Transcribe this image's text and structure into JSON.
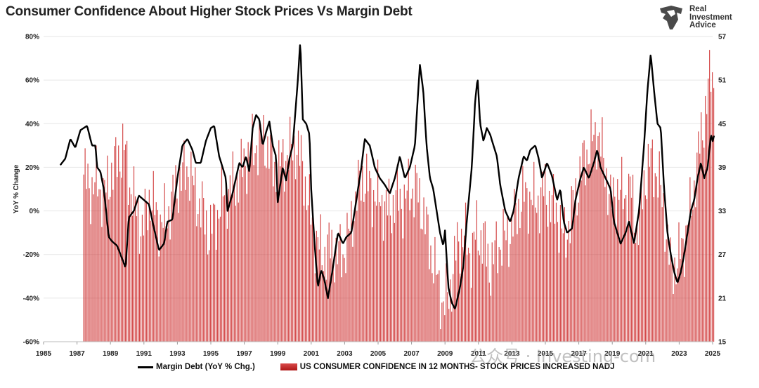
{
  "title": "Consumer Confidence About Higher Stock Prices Vs Margin Debt",
  "logo": {
    "line1": "Real",
    "line2": "Investment",
    "line3": "Advice"
  },
  "watermark": "公众号 · Investing-com",
  "chart_data": {
    "type": "bar+line",
    "title": "Consumer Confidence About Higher Stock Prices Vs Margin Debt",
    "xlabel": "",
    "ylabel": "YoY % Change",
    "x_ticks": [
      "1985",
      "1987",
      "1989",
      "1991",
      "1993",
      "1995",
      "1997",
      "1999",
      "2001",
      "2003",
      "2005",
      "2007",
      "2009",
      "2011",
      "2013",
      "2015",
      "2017",
      "2019",
      "2021",
      "2023",
      "2025"
    ],
    "x_range": [
      1985,
      2025
    ],
    "left_axis": {
      "range": [
        -60,
        80
      ],
      "ticks": [
        "-60%",
        "-40%",
        "-20%",
        "0%",
        "20%",
        "40%",
        "60%",
        "80%"
      ]
    },
    "right_axis": {
      "range": [
        15,
        57
      ],
      "ticks": [
        "15",
        "21",
        "27",
        "33",
        "39",
        "45",
        "51",
        "57"
      ]
    },
    "grid": true,
    "legend_position": "bottom",
    "series": [
      {
        "name": "Margin Debt (YoY % Chg.)",
        "kind": "line",
        "axis": "left",
        "color": "#000000",
        "points": [
          [
            1986.0,
            21
          ],
          [
            1986.3,
            24
          ],
          [
            1986.6,
            33
          ],
          [
            1986.9,
            29
          ],
          [
            1987.2,
            37
          ],
          [
            1987.6,
            39
          ],
          [
            1987.9,
            30
          ],
          [
            1988.1,
            30
          ],
          [
            1988.2,
            20
          ],
          [
            1988.4,
            18
          ],
          [
            1988.6,
            10
          ],
          [
            1988.9,
            -12
          ],
          [
            1989.1,
            -14
          ],
          [
            1989.4,
            -16
          ],
          [
            1989.7,
            -22
          ],
          [
            1989.9,
            -26
          ],
          [
            1990.1,
            -3
          ],
          [
            1990.4,
            0
          ],
          [
            1990.7,
            7
          ],
          [
            1991.0,
            5
          ],
          [
            1991.3,
            3
          ],
          [
            1991.6,
            -8
          ],
          [
            1991.9,
            -18
          ],
          [
            1992.2,
            -15
          ],
          [
            1992.4,
            -5
          ],
          [
            1992.7,
            -4
          ],
          [
            1993.0,
            15
          ],
          [
            1993.3,
            30
          ],
          [
            1993.6,
            33
          ],
          [
            1993.9,
            28
          ],
          [
            1994.1,
            22
          ],
          [
            1994.4,
            22
          ],
          [
            1994.7,
            32
          ],
          [
            1995.0,
            38
          ],
          [
            1995.2,
            39
          ],
          [
            1995.5,
            25
          ],
          [
            1995.7,
            20
          ],
          [
            1995.9,
            15
          ],
          [
            1996.0,
            0
          ],
          [
            1996.3,
            8
          ],
          [
            1996.5,
            15
          ],
          [
            1996.7,
            22
          ],
          [
            1996.9,
            20
          ],
          [
            1997.1,
            25
          ],
          [
            1997.3,
            18
          ],
          [
            1997.5,
            38
          ],
          [
            1997.7,
            44
          ],
          [
            1997.9,
            42
          ],
          [
            1998.1,
            30
          ],
          [
            1998.3,
            36
          ],
          [
            1998.5,
            41
          ],
          [
            1998.7,
            30
          ],
          [
            1998.9,
            25
          ],
          [
            1999.0,
            4
          ],
          [
            1999.3,
            20
          ],
          [
            1999.5,
            14
          ],
          [
            1999.7,
            24
          ],
          [
            1999.9,
            30
          ],
          [
            2000.0,
            40
          ],
          [
            2000.2,
            60
          ],
          [
            2000.35,
            78
          ],
          [
            2000.5,
            42
          ],
          [
            2000.7,
            40
          ],
          [
            2000.9,
            35
          ],
          [
            2001.0,
            10
          ],
          [
            2001.2,
            -15
          ],
          [
            2001.4,
            -35
          ],
          [
            2001.6,
            -27
          ],
          [
            2001.8,
            -32
          ],
          [
            2002.0,
            -40
          ],
          [
            2002.3,
            -26
          ],
          [
            2002.6,
            -10
          ],
          [
            2002.9,
            -15
          ],
          [
            2003.1,
            -12
          ],
          [
            2003.4,
            -10
          ],
          [
            2003.7,
            5
          ],
          [
            2004.0,
            20
          ],
          [
            2004.2,
            33
          ],
          [
            2004.5,
            30
          ],
          [
            2004.8,
            20
          ],
          [
            2005.1,
            15
          ],
          [
            2005.4,
            12
          ],
          [
            2005.7,
            8
          ],
          [
            2006.0,
            15
          ],
          [
            2006.3,
            25
          ],
          [
            2006.6,
            15
          ],
          [
            2006.9,
            20
          ],
          [
            2007.2,
            30
          ],
          [
            2007.4,
            55
          ],
          [
            2007.5,
            67
          ],
          [
            2007.7,
            55
          ],
          [
            2007.9,
            30
          ],
          [
            2008.1,
            15
          ],
          [
            2008.3,
            10
          ],
          [
            2008.5,
            0
          ],
          [
            2008.7,
            -10
          ],
          [
            2008.9,
            -16
          ],
          [
            2009.0,
            -9
          ],
          [
            2009.2,
            -35
          ],
          [
            2009.4,
            -42
          ],
          [
            2009.6,
            -45
          ],
          [
            2009.9,
            -35
          ],
          [
            2010.1,
            -25
          ],
          [
            2010.3,
            -5
          ],
          [
            2010.6,
            20
          ],
          [
            2010.8,
            50
          ],
          [
            2010.95,
            61
          ],
          [
            2011.1,
            40
          ],
          [
            2011.3,
            32
          ],
          [
            2011.5,
            38
          ],
          [
            2011.7,
            35
          ],
          [
            2011.9,
            30
          ],
          [
            2012.1,
            25
          ],
          [
            2012.3,
            12
          ],
          [
            2012.6,
            0
          ],
          [
            2012.9,
            -5
          ],
          [
            2013.1,
            0
          ],
          [
            2013.4,
            15
          ],
          [
            2013.7,
            25
          ],
          [
            2013.9,
            23
          ],
          [
            2014.1,
            28
          ],
          [
            2014.4,
            30
          ],
          [
            2014.6,
            24
          ],
          [
            2014.8,
            15
          ],
          [
            2015.1,
            22
          ],
          [
            2015.4,
            16
          ],
          [
            2015.7,
            5
          ],
          [
            2015.9,
            10
          ],
          [
            2016.1,
            -5
          ],
          [
            2016.3,
            -10
          ],
          [
            2016.6,
            -8
          ],
          [
            2016.8,
            5
          ],
          [
            2017.1,
            15
          ],
          [
            2017.3,
            20
          ],
          [
            2017.6,
            15
          ],
          [
            2017.9,
            22
          ],
          [
            2018.1,
            28
          ],
          [
            2018.3,
            20
          ],
          [
            2018.6,
            15
          ],
          [
            2018.9,
            10
          ],
          [
            2019.1,
            -5
          ],
          [
            2019.3,
            -10
          ],
          [
            2019.5,
            -15
          ],
          [
            2019.8,
            -10
          ],
          [
            2020.0,
            -5
          ],
          [
            2020.3,
            -15
          ],
          [
            2020.6,
            0
          ],
          [
            2020.9,
            30
          ],
          [
            2021.1,
            55
          ],
          [
            2021.3,
            72
          ],
          [
            2021.5,
            55
          ],
          [
            2021.7,
            40
          ],
          [
            2021.9,
            38
          ],
          [
            2022.1,
            10
          ],
          [
            2022.3,
            -10
          ],
          [
            2022.5,
            -20
          ],
          [
            2022.7,
            -28
          ],
          [
            2022.9,
            -33
          ],
          [
            2023.1,
            -28
          ],
          [
            2023.3,
            -20
          ],
          [
            2023.5,
            -10
          ],
          [
            2023.7,
            0
          ],
          [
            2023.9,
            5
          ],
          [
            2024.1,
            15
          ],
          [
            2024.3,
            22
          ],
          [
            2024.5,
            15
          ],
          [
            2024.7,
            20
          ],
          [
            2024.9,
            35
          ],
          [
            2025.0,
            32
          ],
          [
            2025.1,
            35
          ]
        ]
      },
      {
        "name": "US CONSUMER CONFIDENCE IN 12 MONTHS- STOCK PRICES INCREASED NADJ",
        "kind": "bar",
        "axis": "right",
        "color": "#cc2a2a",
        "points": [
          [
            1987.4,
            38
          ],
          [
            1987.8,
            36
          ],
          [
            1988.2,
            37
          ],
          [
            1988.6,
            35
          ],
          [
            1989.0,
            38
          ],
          [
            1989.4,
            40
          ],
          [
            1989.8,
            42
          ],
          [
            1990.2,
            36
          ],
          [
            1990.6,
            33
          ],
          [
            1990.9,
            30
          ],
          [
            1991.3,
            35
          ],
          [
            1991.7,
            33
          ],
          [
            1992.1,
            31
          ],
          [
            1992.5,
            33
          ],
          [
            1992.9,
            36
          ],
          [
            1993.3,
            38
          ],
          [
            1993.7,
            39
          ],
          [
            1994.1,
            35
          ],
          [
            1994.5,
            33
          ],
          [
            1994.9,
            30
          ],
          [
            1995.3,
            32
          ],
          [
            1995.7,
            35
          ],
          [
            1996.1,
            36
          ],
          [
            1996.5,
            37
          ],
          [
            1996.9,
            39
          ],
          [
            1997.3,
            41
          ],
          [
            1997.7,
            42
          ],
          [
            1998.1,
            43
          ],
          [
            1998.5,
            41
          ],
          [
            1998.9,
            38
          ],
          [
            1999.3,
            40
          ],
          [
            1999.7,
            41
          ],
          [
            2000.1,
            42
          ],
          [
            2000.5,
            39
          ],
          [
            2000.9,
            33
          ],
          [
            2001.3,
            29
          ],
          [
            2001.7,
            27
          ],
          [
            2002.1,
            28
          ],
          [
            2002.5,
            27
          ],
          [
            2002.9,
            27
          ],
          [
            2003.3,
            30
          ],
          [
            2003.7,
            35
          ],
          [
            2004.1,
            38
          ],
          [
            2004.5,
            36
          ],
          [
            2004.9,
            35
          ],
          [
            2005.3,
            34
          ],
          [
            2005.7,
            33
          ],
          [
            2006.1,
            35
          ],
          [
            2006.5,
            34
          ],
          [
            2006.9,
            36
          ],
          [
            2007.3,
            36
          ],
          [
            2007.7,
            33
          ],
          [
            2008.1,
            28
          ],
          [
            2008.5,
            24
          ],
          [
            2008.9,
            20
          ],
          [
            2009.3,
            22
          ],
          [
            2009.7,
            28
          ],
          [
            2010.1,
            30
          ],
          [
            2010.5,
            27
          ],
          [
            2010.9,
            30
          ],
          [
            2011.3,
            29
          ],
          [
            2011.7,
            25
          ],
          [
            2012.1,
            28
          ],
          [
            2012.5,
            29
          ],
          [
            2012.9,
            30
          ],
          [
            2013.3,
            33
          ],
          [
            2013.7,
            35
          ],
          [
            2014.1,
            35
          ],
          [
            2014.5,
            34
          ],
          [
            2014.9,
            36
          ],
          [
            2015.3,
            34
          ],
          [
            2015.7,
            33
          ],
          [
            2016.1,
            29
          ],
          [
            2016.5,
            32
          ],
          [
            2016.9,
            36
          ],
          [
            2017.3,
            40
          ],
          [
            2017.7,
            42
          ],
          [
            2018.1,
            44
          ],
          [
            2018.5,
            40
          ],
          [
            2018.9,
            34
          ],
          [
            2019.3,
            36
          ],
          [
            2019.7,
            35
          ],
          [
            2020.1,
            36
          ],
          [
            2020.5,
            30
          ],
          [
            2020.9,
            37
          ],
          [
            2021.3,
            40
          ],
          [
            2021.7,
            38
          ],
          [
            2022.1,
            33
          ],
          [
            2022.5,
            25
          ],
          [
            2022.9,
            26
          ],
          [
            2023.3,
            29
          ],
          [
            2023.7,
            33
          ],
          [
            2024.1,
            40
          ],
          [
            2024.5,
            46
          ],
          [
            2024.9,
            52
          ],
          [
            2025.1,
            51
          ]
        ]
      }
    ]
  }
}
